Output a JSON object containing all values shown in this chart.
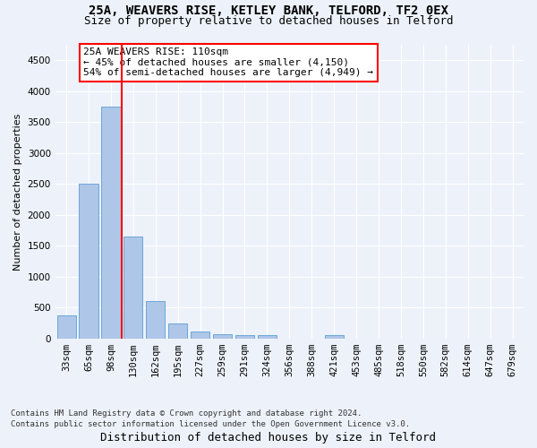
{
  "title1": "25A, WEAVERS RISE, KETLEY BANK, TELFORD, TF2 0EX",
  "title2": "Size of property relative to detached houses in Telford",
  "xlabel": "Distribution of detached houses by size in Telford",
  "ylabel": "Number of detached properties",
  "categories": [
    "33sqm",
    "65sqm",
    "98sqm",
    "130sqm",
    "162sqm",
    "195sqm",
    "227sqm",
    "259sqm",
    "291sqm",
    "324sqm",
    "356sqm",
    "388sqm",
    "421sqm",
    "453sqm",
    "485sqm",
    "518sqm",
    "550sqm",
    "582sqm",
    "614sqm",
    "647sqm",
    "679sqm"
  ],
  "values": [
    375,
    2500,
    3750,
    1650,
    600,
    240,
    110,
    70,
    50,
    55,
    0,
    0,
    60,
    0,
    0,
    0,
    0,
    0,
    0,
    0,
    0
  ],
  "bar_color": "#aec6e8",
  "bar_edgecolor": "#5a9fd4",
  "vline_idx": 2,
  "vline_color": "red",
  "annotation_text": "25A WEAVERS RISE: 110sqm\n← 45% of detached houses are smaller (4,150)\n54% of semi-detached houses are larger (4,949) →",
  "annotation_box_color": "white",
  "annotation_box_edgecolor": "red",
  "ylim": [
    0,
    4750
  ],
  "yticks": [
    0,
    500,
    1000,
    1500,
    2000,
    2500,
    3000,
    3500,
    4000,
    4500
  ],
  "footer1": "Contains HM Land Registry data © Crown copyright and database right 2024.",
  "footer2": "Contains public sector information licensed under the Open Government Licence v3.0.",
  "bg_color": "#edf2fa",
  "grid_color": "white",
  "title1_fontsize": 10,
  "title2_fontsize": 9,
  "xlabel_fontsize": 9,
  "ylabel_fontsize": 8,
  "tick_fontsize": 7.5,
  "annotation_fontsize": 8,
  "footer_fontsize": 6.5
}
